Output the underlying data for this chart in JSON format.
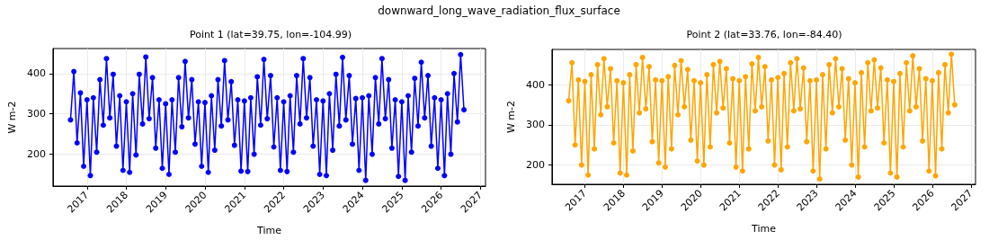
{
  "chart_data": [
    {
      "type": "line",
      "title": "Point 1 (lat=39.75, lon=-104.99)",
      "annotations": [
        "downward_long_wave_radiation_flux_surface"
      ],
      "xlabel": "Time",
      "ylabel": "W m-2",
      "x": [
        "2016-08",
        "2016-09",
        "2016-10",
        "2016-11",
        "2016-12",
        "2017-01",
        "2017-02",
        "2017-03",
        "2017-04",
        "2017-05",
        "2017-06",
        "2017-07",
        "2017-08",
        "2017-09",
        "2017-10",
        "2017-11",
        "2017-12",
        "2018-01",
        "2018-02",
        "2018-03",
        "2018-04",
        "2018-05",
        "2018-06",
        "2018-07",
        "2018-08",
        "2018-09",
        "2018-10",
        "2018-11",
        "2018-12",
        "2019-01",
        "2019-02",
        "2019-03",
        "2019-04",
        "2019-05",
        "2019-06",
        "2019-07",
        "2019-08",
        "2019-09",
        "2019-10",
        "2019-11",
        "2019-12",
        "2020-01",
        "2020-02",
        "2020-03",
        "2020-04",
        "2020-05",
        "2020-06",
        "2020-07",
        "2020-08",
        "2020-09",
        "2020-10",
        "2020-11",
        "2020-12",
        "2021-01",
        "2021-02",
        "2021-03",
        "2021-04",
        "2021-05",
        "2021-06",
        "2021-07",
        "2021-08",
        "2021-09",
        "2021-10",
        "2021-11",
        "2021-12",
        "2022-01",
        "2022-02",
        "2022-03",
        "2022-04",
        "2022-05",
        "2022-06",
        "2022-07",
        "2022-08",
        "2022-09",
        "2022-10",
        "2022-11",
        "2022-12",
        "2023-01",
        "2023-02",
        "2023-03",
        "2023-04",
        "2023-05",
        "2023-06",
        "2023-07",
        "2023-08",
        "2023-09",
        "2023-10",
        "2023-11",
        "2023-12",
        "2024-01",
        "2024-02",
        "2024-03",
        "2024-04",
        "2024-05",
        "2024-06",
        "2024-07",
        "2024-08",
        "2024-09",
        "2024-10",
        "2024-11",
        "2024-12",
        "2025-01",
        "2025-02",
        "2025-03",
        "2025-04",
        "2025-05",
        "2025-06",
        "2025-07",
        "2025-08",
        "2025-09",
        "2025-10",
        "2025-11",
        "2025-12",
        "2026-01",
        "2026-02",
        "2026-03",
        "2026-04",
        "2026-05",
        "2026-06",
        "2026-07",
        "2026-08"
      ],
      "series": [
        {
          "color": "#0000ff",
          "values": [
            285,
            405,
            228,
            352,
            170,
            335,
            147,
            340,
            205,
            385,
            272,
            437,
            290,
            398,
            220,
            345,
            160,
            330,
            155,
            350,
            198,
            398,
            275,
            441,
            288,
            390,
            215,
            335,
            165,
            325,
            150,
            335,
            205,
            390,
            268,
            430,
            290,
            385,
            225,
            330,
            170,
            328,
            155,
            345,
            210,
            385,
            270,
            432,
            285,
            380,
            222,
            335,
            158,
            332,
            157,
            340,
            200,
            392,
            272,
            435,
            288,
            395,
            218,
            340,
            160,
            330,
            157,
            345,
            205,
            395,
            275,
            437,
            290,
            390,
            220,
            335,
            150,
            332,
            147,
            350,
            210,
            398,
            270,
            440,
            285,
            395,
            225,
            338,
            160,
            340,
            135,
            345,
            200,
            390,
            275,
            437,
            288,
            385,
            215,
            335,
            145,
            330,
            135,
            345,
            205,
            388,
            270,
            428,
            290,
            395,
            220,
            340,
            165,
            335,
            147,
            350,
            200,
            400,
            280,
            447,
            310
          ]
        }
      ],
      "xlim": [
        "2016-02-20",
        "2027-02-17"
      ],
      "xticks": [
        "2017",
        "2018",
        "2019",
        "2020",
        "2021",
        "2022",
        "2023",
        "2024",
        "2025",
        "2026",
        "2027"
      ],
      "ylim": [
        121,
        462
      ],
      "yticks": [
        200,
        300,
        400
      ],
      "grid": true,
      "marker": "circle",
      "line_style": "solid"
    },
    {
      "type": "line",
      "title": "Point 2 (lat=33.76, lon=-84.40)",
      "xlabel": "Time",
      "ylabel": "W m-2",
      "x": [
        "2016-08",
        "2016-09",
        "2016-10",
        "2016-11",
        "2016-12",
        "2017-01",
        "2017-02",
        "2017-03",
        "2017-04",
        "2017-05",
        "2017-06",
        "2017-07",
        "2017-08",
        "2017-09",
        "2017-10",
        "2017-11",
        "2017-12",
        "2018-01",
        "2018-02",
        "2018-03",
        "2018-04",
        "2018-05",
        "2018-06",
        "2018-07",
        "2018-08",
        "2018-09",
        "2018-10",
        "2018-11",
        "2018-12",
        "2019-01",
        "2019-02",
        "2019-03",
        "2019-04",
        "2019-05",
        "2019-06",
        "2019-07",
        "2019-08",
        "2019-09",
        "2019-10",
        "2019-11",
        "2019-12",
        "2020-01",
        "2020-02",
        "2020-03",
        "2020-04",
        "2020-05",
        "2020-06",
        "2020-07",
        "2020-08",
        "2020-09",
        "2020-10",
        "2020-11",
        "2020-12",
        "2021-01",
        "2021-02",
        "2021-03",
        "2021-04",
        "2021-05",
        "2021-06",
        "2021-07",
        "2021-08",
        "2021-09",
        "2021-10",
        "2021-11",
        "2021-12",
        "2022-01",
        "2022-02",
        "2022-03",
        "2022-04",
        "2022-05",
        "2022-06",
        "2022-07",
        "2022-08",
        "2022-09",
        "2022-10",
        "2022-11",
        "2022-12",
        "2023-01",
        "2023-02",
        "2023-03",
        "2023-04",
        "2023-05",
        "2023-06",
        "2023-07",
        "2023-08",
        "2023-09",
        "2023-10",
        "2023-11",
        "2023-12",
        "2024-01",
        "2024-02",
        "2024-03",
        "2024-04",
        "2024-05",
        "2024-06",
        "2024-07",
        "2024-08",
        "2024-09",
        "2024-10",
        "2024-11",
        "2024-12",
        "2025-01",
        "2025-02",
        "2025-03",
        "2025-04",
        "2025-05",
        "2025-06",
        "2025-07",
        "2025-08",
        "2025-09",
        "2025-10",
        "2025-11",
        "2025-12",
        "2026-01",
        "2026-02",
        "2026-03",
        "2026-04",
        "2026-05",
        "2026-06",
        "2026-07",
        "2026-08"
      ],
      "series": [
        {
          "color": "#ffa500",
          "values": [
            360,
            455,
            250,
            412,
            200,
            408,
            175,
            425,
            240,
            450,
            325,
            465,
            345,
            440,
            255,
            410,
            180,
            405,
            175,
            425,
            235,
            450,
            330,
            468,
            340,
            445,
            258,
            412,
            205,
            410,
            195,
            420,
            240,
            448,
            325,
            460,
            345,
            438,
            262,
            410,
            210,
            405,
            200,
            425,
            245,
            450,
            330,
            458,
            342,
            440,
            255,
            415,
            195,
            410,
            185,
            420,
            240,
            452,
            335,
            468,
            345,
            445,
            260,
            412,
            200,
            418,
            188,
            428,
            245,
            455,
            335,
            465,
            340,
            442,
            258,
            410,
            185,
            412,
            165,
            425,
            240,
            450,
            330,
            465,
            345,
            440,
            262,
            415,
            200,
            405,
            170,
            430,
            245,
            455,
            335,
            462,
            342,
            442,
            255,
            412,
            180,
            408,
            170,
            428,
            245,
            455,
            335,
            472,
            345,
            440,
            260,
            415,
            185,
            410,
            173,
            430,
            240,
            450,
            330,
            476,
            350
          ]
        }
      ],
      "xlim": [
        "2016-02-25",
        "2027-02-14"
      ],
      "xticks": [
        "2017",
        "2018",
        "2019",
        "2020",
        "2021",
        "2022",
        "2023",
        "2024",
        "2025",
        "2026",
        "2027"
      ],
      "ylim": [
        152,
        488
      ],
      "yticks": [
        200,
        300,
        400
      ],
      "grid": true,
      "marker": "circle",
      "line_style": "solid"
    }
  ]
}
